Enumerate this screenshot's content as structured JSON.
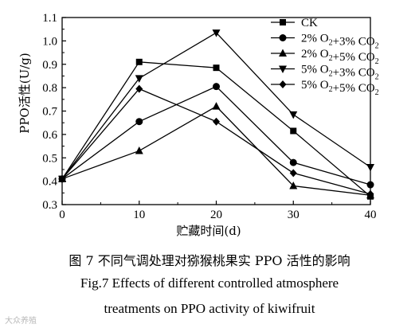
{
  "chart_data": {
    "type": "line",
    "xlabel": "贮藏时间(d)",
    "ylabel": "PPO活性(U/g)",
    "x": [
      0,
      10,
      20,
      30,
      40
    ],
    "xticks": [
      0,
      10,
      20,
      30,
      40
    ],
    "yticks": [
      "0.3",
      "0.4",
      "0.5",
      "0.6",
      "0.7",
      "0.8",
      "0.9",
      "1.0",
      "1.1"
    ],
    "xlim": [
      0,
      40
    ],
    "ylim": [
      0.3,
      1.1
    ],
    "legend_position": "top-right",
    "series": [
      {
        "name": "CK",
        "legend_main": "CK",
        "legend_parts": [],
        "marker": "square",
        "values": [
          0.41,
          0.91,
          0.885,
          0.615,
          0.335
        ]
      },
      {
        "name": "2% O2+3% CO2",
        "legend_main": "",
        "legend_parts": [
          [
            "2% O",
            "2"
          ],
          [
            "+3% CO",
            "2"
          ]
        ],
        "marker": "circle",
        "values": [
          0.41,
          0.655,
          0.805,
          0.48,
          0.385
        ]
      },
      {
        "name": "2% O2+5% CO2",
        "legend_main": "",
        "legend_parts": [
          [
            "2% O",
            "2"
          ],
          [
            "+5% CO",
            "2"
          ]
        ],
        "marker": "triangle-up",
        "values": [
          0.41,
          0.53,
          0.72,
          0.38,
          0.34
        ]
      },
      {
        "name": "5% O2+3% CO2",
        "legend_main": "",
        "legend_parts": [
          [
            "5% O",
            "2"
          ],
          [
            "+3% CO",
            "2"
          ]
        ],
        "marker": "triangle-down",
        "values": [
          0.41,
          0.84,
          1.035,
          0.685,
          0.46
        ]
      },
      {
        "name": "5% O2+5% CO2",
        "legend_main": "",
        "legend_parts": [
          [
            "5% O",
            "2"
          ],
          [
            "+5% CO",
            "2"
          ]
        ],
        "marker": "diamond",
        "values": [
          0.41,
          0.795,
          0.655,
          0.435,
          0.345
        ]
      }
    ]
  },
  "caption": {
    "cn": "图 7   不同气调处理对猕猴桃果实 PPO 活性的影响",
    "en_line1": "Fig.7   Effects of different controlled atmosphere",
    "en_line2": "treatments on PPO activity of kiwifruit"
  },
  "watermark": "大众养殖"
}
